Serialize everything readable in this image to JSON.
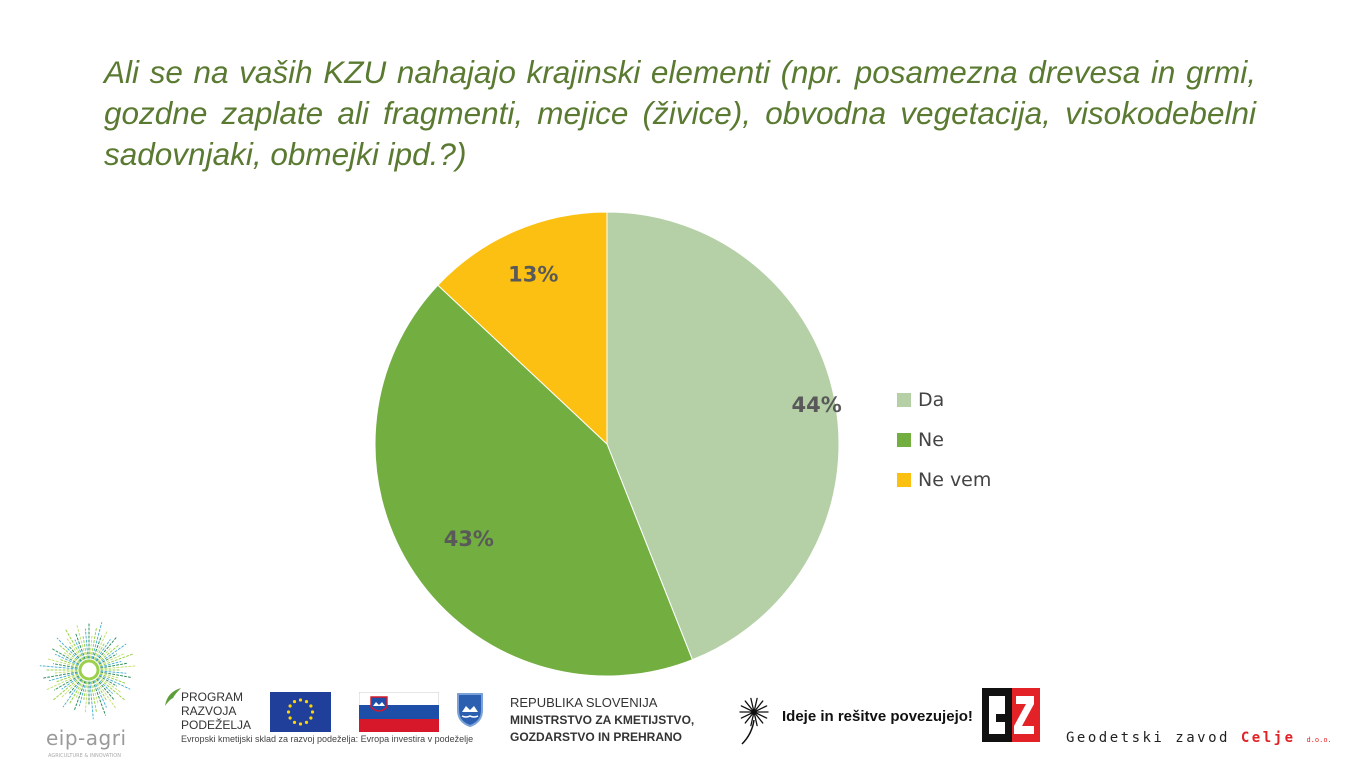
{
  "slide": {
    "title": "Ali se na vaših KZU nahajajo krajinski elementi (npr. posamezna drevesa in grmi, gozdne zaplate ali fragmenti, mejice (živice), obvodna vegetacija, visokodebelni sadovnjaki, obmejki ipd.?)"
  },
  "chart_data": {
    "type": "pie",
    "labels": [
      "Da",
      "Ne",
      "Ne vem"
    ],
    "values": [
      44,
      43,
      13
    ],
    "data_labels": [
      "44%",
      "43%",
      "13%"
    ],
    "colors": [
      "#b5d0a6",
      "#72ae40",
      "#fbc012"
    ],
    "legend_position": "right"
  },
  "footer": {
    "eip_logo_text": "eip-agri",
    "eip_logo_sub": "AGRICULTURE & INNOVATION",
    "prp_line1": "PROGRAM",
    "prp_line2": "RAZVOJA",
    "prp_line3": "PODEŽELJA",
    "prp_caption": "Evropski kmetijski sklad za razvoj podeželja: Evropa investira v podeželje",
    "ministry_line1": "REPUBLIKA SLOVENIJA",
    "ministry_line2": "MINISTRSTVO ZA KMETIJSTVO,",
    "ministry_line3": "GOZDARSTVO IN PREHRANO",
    "slogan": "Ideje in rešitve povezujejo!",
    "gz_company": "Geodetski zavod",
    "gz_city": "Celje",
    "gz_suffix": "d.o.o."
  }
}
